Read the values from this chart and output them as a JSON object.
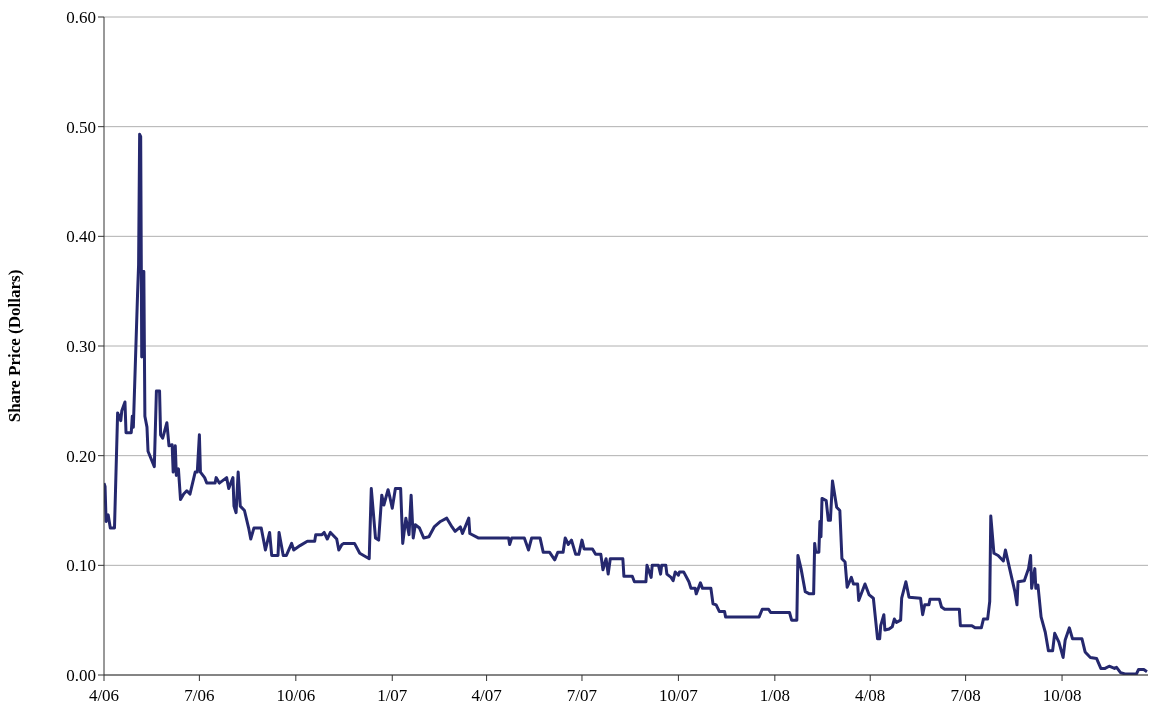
{
  "chart_data": {
    "type": "line",
    "ylabel": "Share Price (Dollars)",
    "color": "#25286e",
    "grid": "y",
    "xlim": [
      "2006-04-01",
      "2008-12-22"
    ],
    "xticks": [
      {
        "value": "2006-04-01",
        "label": "4/06"
      },
      {
        "value": "2006-07-01",
        "label": "7/06"
      },
      {
        "value": "2006-10-01",
        "label": "10/06"
      },
      {
        "value": "2007-01-01",
        "label": "1/07"
      },
      {
        "value": "2007-04-01",
        "label": "4/07"
      },
      {
        "value": "2007-07-01",
        "label": "7/07"
      },
      {
        "value": "2007-10-01",
        "label": "10/07"
      },
      {
        "value": "2008-01-01",
        "label": "1/08"
      },
      {
        "value": "2008-04-01",
        "label": "4/08"
      },
      {
        "value": "2008-07-01",
        "label": "7/08"
      },
      {
        "value": "2008-10-01",
        "label": "10/08"
      }
    ],
    "ylim": [
      0,
      0.6
    ],
    "yticks": [
      {
        "value": 0,
        "label": "0.00"
      },
      {
        "value": 0.1,
        "label": "0.10"
      },
      {
        "value": 0.2,
        "label": "0.20"
      },
      {
        "value": 0.3,
        "label": "0.30"
      },
      {
        "value": 0.4,
        "label": "0.40"
      },
      {
        "value": 0.5,
        "label": "0.50"
      },
      {
        "value": 0.6,
        "label": "0.60"
      }
    ],
    "x": [
      "2006-04-01",
      "2006-04-02",
      "2006-04-03",
      "2006-04-05",
      "2006-04-07",
      "2006-04-11",
      "2006-04-14",
      "2006-04-17",
      "2006-04-18",
      "2006-04-21",
      "2006-04-22",
      "2006-04-27",
      "2006-04-28",
      "2006-04-29",
      "2006-05-03",
      "2006-05-04",
      "2006-05-05",
      "2006-05-06",
      "2006-05-07",
      "2006-05-08",
      "2006-05-09",
      "2006-05-10",
      "2006-05-12",
      "2006-05-13",
      "2006-05-19",
      "2006-05-21",
      "2006-05-24",
      "2006-05-25",
      "2006-05-27",
      "2006-05-31",
      "2006-06-02",
      "2006-06-05",
      "2006-06-06",
      "2006-06-08",
      "2006-06-09",
      "2006-06-11",
      "2006-06-13",
      "2006-06-16",
      "2006-06-19",
      "2006-06-22",
      "2006-06-27",
      "2006-06-29",
      "2006-07-01",
      "2006-07-02",
      "2006-07-06",
      "2006-07-08",
      "2006-07-16",
      "2006-07-17",
      "2006-07-20",
      "2006-07-27",
      "2006-07-29",
      "2006-08-02",
      "2006-08-03",
      "2006-08-05",
      "2006-08-07",
      "2006-08-09",
      "2006-08-13",
      "2006-08-17",
      "2006-08-19",
      "2006-08-22",
      "2006-08-29",
      "2006-09-02",
      "2006-09-06",
      "2006-09-08",
      "2006-09-14",
      "2006-09-15",
      "2006-09-19",
      "2006-09-22",
      "2006-09-27",
      "2006-09-29",
      "2006-10-05",
      "2006-10-12",
      "2006-10-19",
      "2006-10-20",
      "2006-10-26",
      "2006-10-28",
      "2006-10-31",
      "2006-11-03",
      "2006-11-09",
      "2006-11-11",
      "2006-11-14",
      "2006-11-16",
      "2006-11-26",
      "2006-12-01",
      "2006-12-10",
      "2006-12-12",
      "2006-12-16",
      "2006-12-19",
      "2006-12-22",
      "2006-12-24",
      "2006-12-28",
      "2006-12-30",
      "2007-01-01",
      "2007-01-04",
      "2007-01-09",
      "2007-01-11",
      "2007-01-14",
      "2007-01-17",
      "2007-01-19",
      "2007-01-21",
      "2007-01-23",
      "2007-01-27",
      "2007-01-31",
      "2007-02-05",
      "2007-02-10",
      "2007-02-16",
      "2007-02-22",
      "2007-02-27",
      "2007-03-02",
      "2007-03-07",
      "2007-03-09",
      "2007-03-15",
      "2007-03-16",
      "2007-03-24",
      "2007-04-04",
      "2007-04-22",
      "2007-04-23",
      "2007-04-25",
      "2007-05-07",
      "2007-05-11",
      "2007-05-14",
      "2007-05-22",
      "2007-05-25",
      "2007-05-31",
      "2007-06-05",
      "2007-06-08",
      "2007-06-13",
      "2007-06-15",
      "2007-06-18",
      "2007-06-21",
      "2007-06-25",
      "2007-06-28",
      "2007-07-01",
      "2007-07-03",
      "2007-07-11",
      "2007-07-14",
      "2007-07-19",
      "2007-07-21",
      "2007-07-24",
      "2007-07-26",
      "2007-07-28",
      "2007-08-09",
      "2007-08-10",
      "2007-08-18",
      "2007-08-20",
      "2007-08-31",
      "2007-09-01",
      "2007-09-05",
      "2007-09-06",
      "2007-09-12",
      "2007-09-14",
      "2007-09-15",
      "2007-09-19",
      "2007-09-20",
      "2007-09-24",
      "2007-09-26",
      "2007-09-28",
      "2007-10-01",
      "2007-10-02",
      "2007-10-06",
      "2007-10-11",
      "2007-10-13",
      "2007-10-17",
      "2007-10-18",
      "2007-10-22",
      "2007-10-24",
      "2007-11-01",
      "2007-11-03",
      "2007-11-06",
      "2007-11-09",
      "2007-11-14",
      "2007-11-15",
      "2007-12-17",
      "2007-12-20",
      "2007-12-26",
      "2007-12-28",
      "2008-01-15",
      "2008-01-17",
      "2008-01-22",
      "2008-01-23",
      "2008-01-26",
      "2008-01-30",
      "2008-02-03",
      "2008-02-07",
      "2008-02-08",
      "2008-02-09",
      "2008-02-12",
      "2008-02-13",
      "2008-02-14",
      "2008-02-15",
      "2008-02-19",
      "2008-02-21",
      "2008-02-23",
      "2008-02-25",
      "2008-02-29",
      "2008-03-03",
      "2008-03-05",
      "2008-03-08",
      "2008-03-10",
      "2008-03-14",
      "2008-03-16",
      "2008-03-20",
      "2008-03-21",
      "2008-03-27",
      "2008-03-31",
      "2008-04-04",
      "2008-04-08",
      "2008-04-10",
      "2008-04-11",
      "2008-04-14",
      "2008-04-15",
      "2008-04-19",
      "2008-04-22",
      "2008-04-24",
      "2008-04-26",
      "2008-04-30",
      "2008-05-01",
      "2008-05-05",
      "2008-05-08",
      "2008-05-19",
      "2008-05-21",
      "2008-05-23",
      "2008-05-27",
      "2008-05-28",
      "2008-06-06",
      "2008-06-08",
      "2008-06-11",
      "2008-06-25",
      "2008-06-26",
      "2008-07-07",
      "2008-07-10",
      "2008-07-16",
      "2008-07-18",
      "2008-07-22",
      "2008-07-24",
      "2008-07-25",
      "2008-07-28",
      "2008-08-01",
      "2008-08-06",
      "2008-08-08",
      "2008-08-12",
      "2008-08-17",
      "2008-08-19",
      "2008-08-20",
      "2008-08-26",
      "2008-08-30",
      "2008-09-01",
      "2008-09-02",
      "2008-09-05",
      "2008-09-06",
      "2008-09-08",
      "2008-09-11",
      "2008-09-15",
      "2008-09-18",
      "2008-09-22",
      "2008-09-24",
      "2008-09-28",
      "2008-10-02",
      "2008-10-04",
      "2008-10-08",
      "2008-10-11",
      "2008-10-20",
      "2008-10-23",
      "2008-10-28",
      "2008-11-03",
      "2008-11-07",
      "2008-11-11",
      "2008-11-15",
      "2008-11-20",
      "2008-11-22",
      "2008-11-26",
      "2008-11-30",
      "2008-12-11",
      "2008-12-13",
      "2008-12-18",
      "2008-12-21"
    ],
    "values": [
      0.175,
      0.172,
      0.14,
      0.146,
      0.134,
      0.134,
      0.239,
      0.232,
      0.241,
      0.249,
      0.221,
      0.221,
      0.236,
      0.226,
      0.347,
      0.374,
      0.493,
      0.491,
      0.29,
      0.368,
      0.368,
      0.236,
      0.226,
      0.204,
      0.19,
      0.259,
      0.259,
      0.219,
      0.216,
      0.23,
      0.209,
      0.21,
      0.185,
      0.209,
      0.182,
      0.188,
      0.16,
      0.165,
      0.168,
      0.165,
      0.185,
      0.185,
      0.219,
      0.185,
      0.18,
      0.175,
      0.175,
      0.18,
      0.175,
      0.18,
      0.17,
      0.18,
      0.154,
      0.148,
      0.185,
      0.154,
      0.15,
      0.134,
      0.124,
      0.134,
      0.134,
      0.114,
      0.13,
      0.109,
      0.109,
      0.13,
      0.109,
      0.109,
      0.12,
      0.114,
      0.118,
      0.122,
      0.122,
      0.128,
      0.128,
      0.13,
      0.124,
      0.13,
      0.124,
      0.114,
      0.119,
      0.12,
      0.12,
      0.111,
      0.106,
      0.17,
      0.125,
      0.123,
      0.164,
      0.155,
      0.169,
      0.161,
      0.152,
      0.17,
      0.17,
      0.12,
      0.143,
      0.128,
      0.164,
      0.125,
      0.137,
      0.134,
      0.125,
      0.126,
      0.135,
      0.14,
      0.143,
      0.135,
      0.131,
      0.135,
      0.129,
      0.143,
      0.129,
      0.125,
      0.125,
      0.125,
      0.119,
      0.125,
      0.125,
      0.114,
      0.125,
      0.125,
      0.112,
      0.112,
      0.105,
      0.112,
      0.112,
      0.125,
      0.119,
      0.123,
      0.11,
      0.11,
      0.123,
      0.115,
      0.115,
      0.11,
      0.11,
      0.096,
      0.106,
      0.092,
      0.106,
      0.106,
      0.09,
      0.09,
      0.085,
      0.085,
      0.1,
      0.089,
      0.1,
      0.1,
      0.092,
      0.1,
      0.1,
      0.092,
      0.089,
      0.086,
      0.094,
      0.091,
      0.094,
      0.094,
      0.085,
      0.079,
      0.079,
      0.074,
      0.084,
      0.079,
      0.079,
      0.065,
      0.064,
      0.058,
      0.058,
      0.053,
      0.053,
      0.06,
      0.06,
      0.057,
      0.057,
      0.05,
      0.05,
      0.109,
      0.097,
      0.076,
      0.074,
      0.074,
      0.12,
      0.112,
      0.112,
      0.14,
      0.126,
      0.161,
      0.159,
      0.141,
      0.141,
      0.177,
      0.153,
      0.15,
      0.106,
      0.103,
      0.08,
      0.089,
      0.083,
      0.083,
      0.068,
      0.083,
      0.073,
      0.07,
      0.033,
      0.033,
      0.045,
      0.055,
      0.041,
      0.042,
      0.044,
      0.051,
      0.048,
      0.05,
      0.07,
      0.085,
      0.071,
      0.07,
      0.055,
      0.064,
      0.064,
      0.069,
      0.069,
      0.062,
      0.06,
      0.06,
      0.045,
      0.045,
      0.043,
      0.043,
      0.051,
      0.051,
      0.067,
      0.145,
      0.111,
      0.109,
      0.104,
      0.114,
      0.097,
      0.076,
      0.064,
      0.085,
      0.086,
      0.097,
      0.109,
      0.079,
      0.097,
      0.079,
      0.082,
      0.053,
      0.039,
      0.022,
      0.022,
      0.038,
      0.03,
      0.016,
      0.032,
      0.043,
      0.033,
      0.033,
      0.021,
      0.016,
      0.015,
      0.006,
      0.006,
      0.008,
      0.006,
      0.007,
      0.002,
      0.001,
      0.001,
      0.005,
      0.005,
      0.003
    ]
  }
}
